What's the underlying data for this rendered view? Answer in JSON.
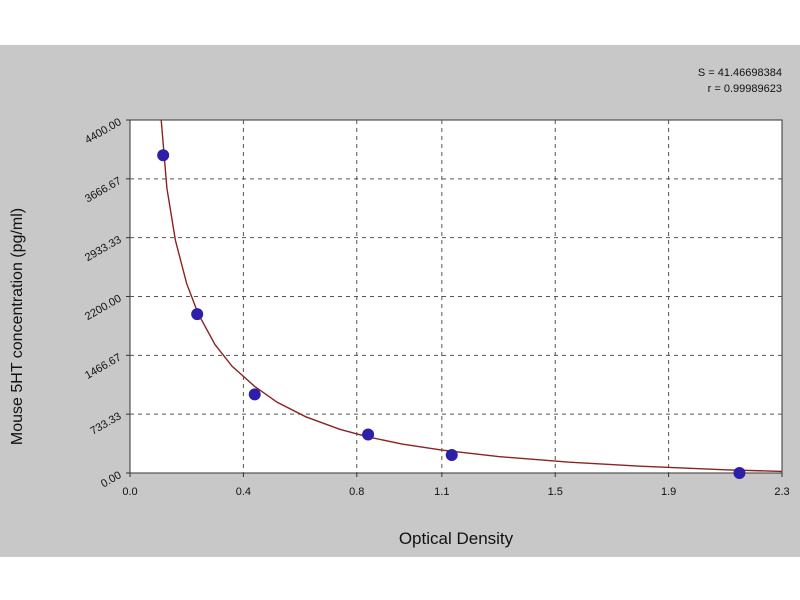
{
  "chart_data": {
    "type": "scatter",
    "xlabel": "Optical Density",
    "ylabel": "Mouse 5HT  concentration (pg/ml)",
    "xlim": [
      0.0,
      2.3
    ],
    "ylim": [
      0,
      4400
    ],
    "x_ticks": [
      0.0,
      0.4,
      0.8,
      1.1,
      1.5,
      1.9,
      2.3
    ],
    "x_tick_labels": [
      "0.0",
      "0.4",
      "0.8",
      "1.1",
      "1.5",
      "1.9",
      "2.3"
    ],
    "y_ticks": [
      0,
      733.33,
      1466.67,
      2200,
      2933.33,
      3666.67,
      4400
    ],
    "y_tick_labels": [
      "0.00",
      "733.33",
      "1466.67",
      "2200.00",
      "2933.33",
      "3666.67",
      "4400.00"
    ],
    "grid": true,
    "stats": [
      "S = 41.46698384",
      "r = 0.99989623"
    ],
    "series": [
      {
        "x": [
          0.117,
          0.237,
          0.44,
          0.84,
          1.135,
          2.15
        ],
        "y": [
          3960,
          1980,
          980,
          480,
          225,
          0
        ],
        "marker_color": "#2d1fa8"
      }
    ],
    "fit_curve": {
      "color": "#8b2323",
      "x": [
        0.11,
        0.13,
        0.16,
        0.2,
        0.24,
        0.3,
        0.36,
        0.44,
        0.52,
        0.62,
        0.74,
        0.84,
        0.96,
        1.1,
        1.3,
        1.55,
        1.8,
        2.1,
        2.3
      ],
      "y": [
        4400,
        3550,
        2900,
        2360,
        1990,
        1600,
        1330,
        1080,
        880,
        700,
        545,
        450,
        360,
        285,
        205,
        135,
        85,
        40,
        20
      ]
    }
  }
}
